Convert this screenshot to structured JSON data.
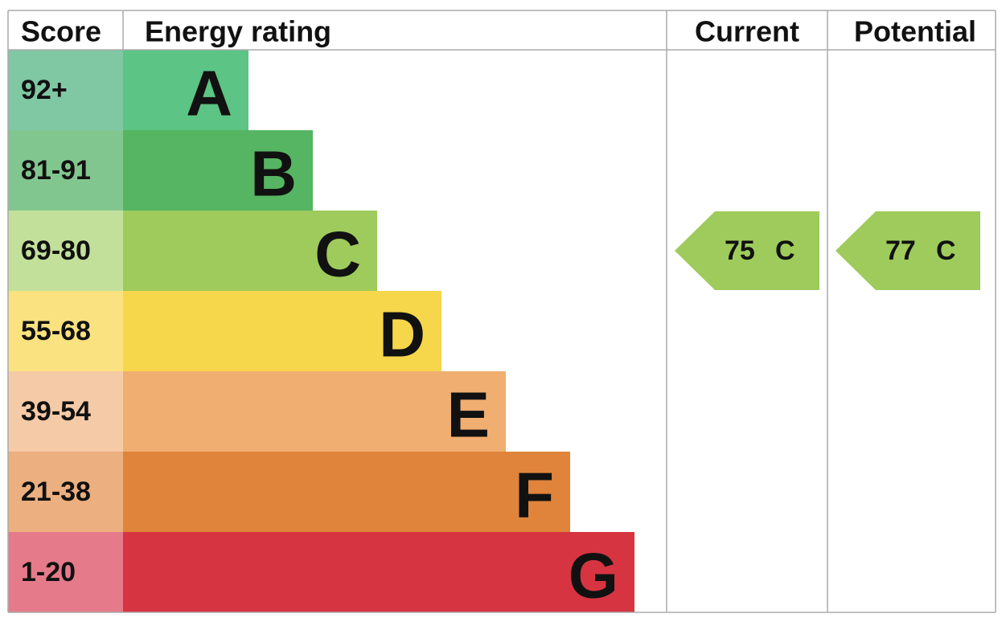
{
  "header": {
    "score": "Score",
    "energy_rating": "Energy rating",
    "current": "Current",
    "potential": "Potential"
  },
  "bands": [
    {
      "score": "92+",
      "letter": "A",
      "color": "#5cc484",
      "score_color": "#80c7a4"
    },
    {
      "score": "81-91",
      "letter": "B",
      "color": "#56b562",
      "score_color": "#82c68f"
    },
    {
      "score": "69-80",
      "letter": "C",
      "color": "#9ecb5b",
      "score_color": "#c3e09b"
    },
    {
      "score": "55-68",
      "letter": "D",
      "color": "#f6d64a",
      "score_color": "#f9e27f"
    },
    {
      "score": "39-54",
      "letter": "E",
      "color": "#f0ae71",
      "score_color": "#f5caa6"
    },
    {
      "score": "21-38",
      "letter": "F",
      "color": "#e0843b",
      "score_color": "#ecaf7f"
    },
    {
      "score": "1-20",
      "letter": "G",
      "color": "#d63441",
      "score_color": "#e57a8a"
    }
  ],
  "current": {
    "value": 75,
    "letter": "C"
  },
  "potential": {
    "value": 77,
    "letter": "C"
  }
}
